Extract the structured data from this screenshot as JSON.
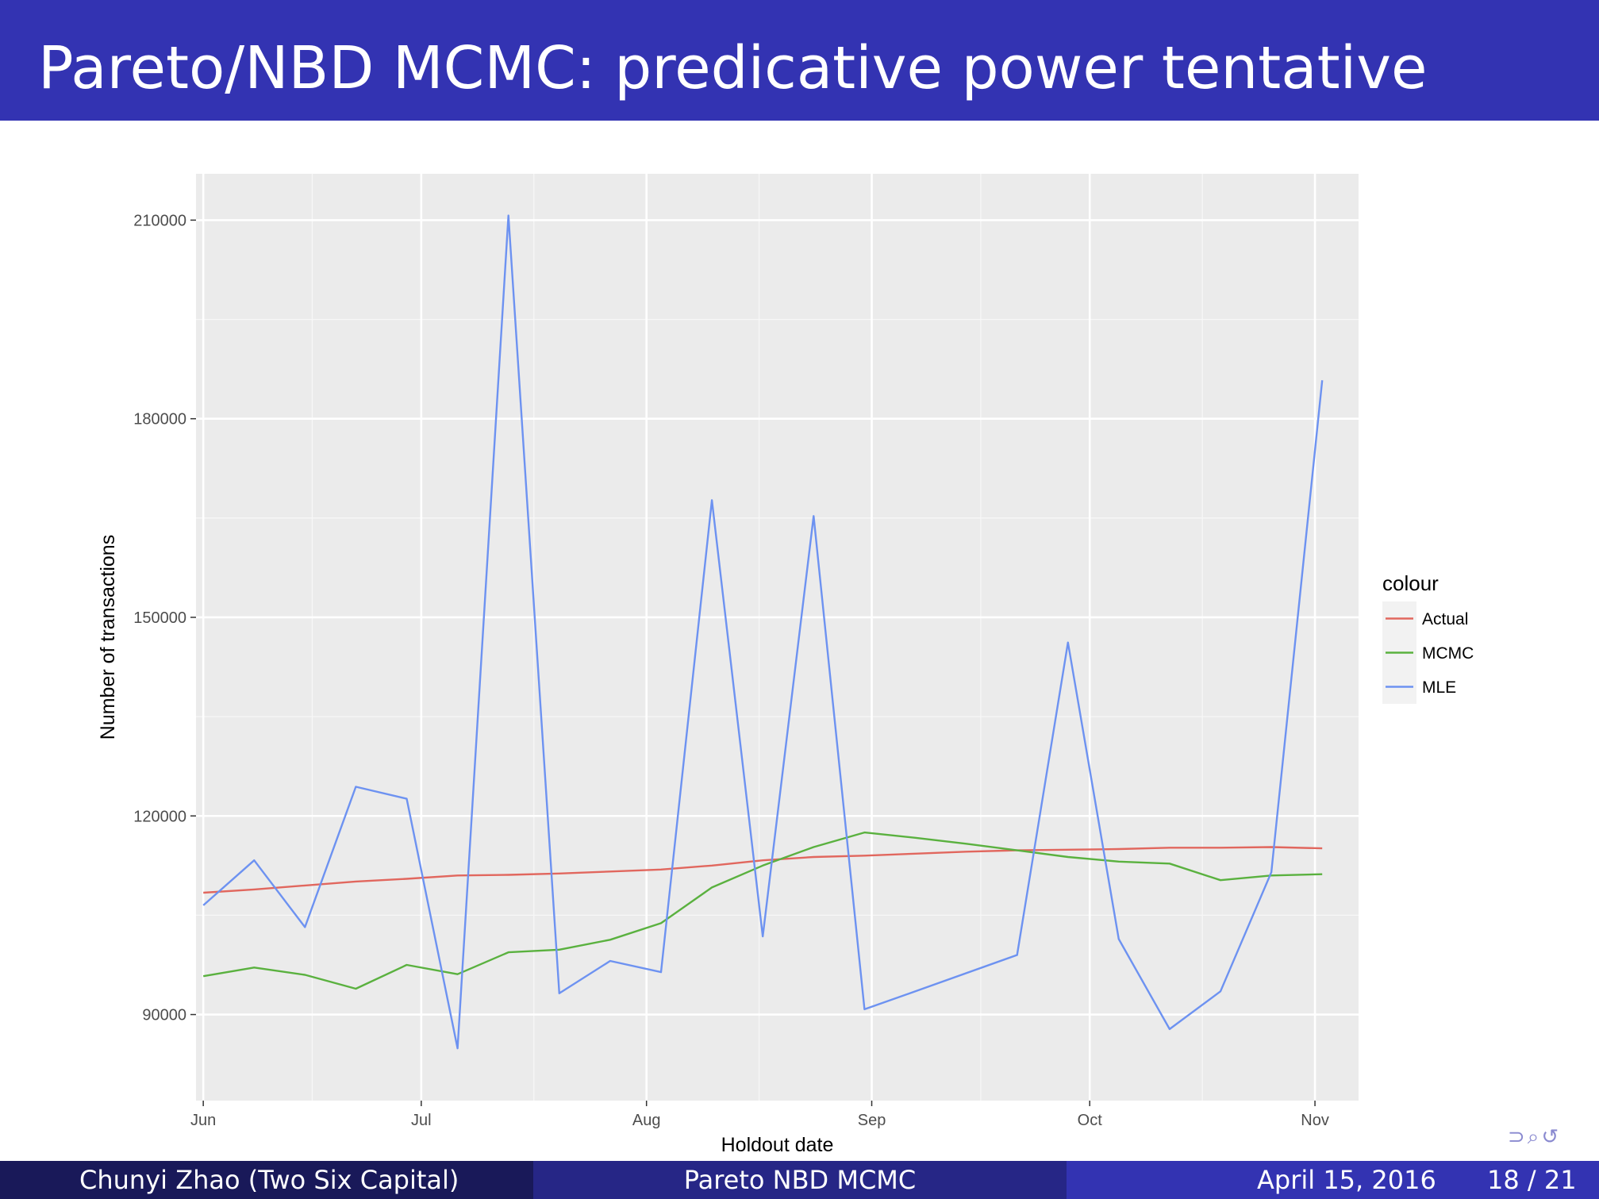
{
  "slide": {
    "title": "Pareto/NBD MCMC: predicative power tentative"
  },
  "footer": {
    "author": "Chunyi Zhao  (Two Six Capital)",
    "short_title": "Pareto NBD MCMC",
    "date": "April 15, 2016",
    "page": "18 / 21"
  },
  "nav_icons": [
    "nav-prev-icon",
    "nav-search-icon",
    "nav-return-icon"
  ],
  "chart_data": {
    "type": "line",
    "xlabel": "Holdout date",
    "ylabel": "Number of transactions",
    "x_axis_type": "date",
    "xlim": [
      "2015-05-31",
      "2015-11-07"
    ],
    "ylim": [
      77000,
      217000
    ],
    "x_ticks": [
      {
        "date": "2015-06-01",
        "label": "Jun"
      },
      {
        "date": "2015-07-01",
        "label": "Jul"
      },
      {
        "date": "2015-08-01",
        "label": "Aug"
      },
      {
        "date": "2015-09-01",
        "label": "Sep"
      },
      {
        "date": "2015-10-01",
        "label": "Oct"
      },
      {
        "date": "2015-11-01",
        "label": "Nov"
      }
    ],
    "y_ticks": [
      90000,
      120000,
      150000,
      180000,
      210000
    ],
    "y_tick_labels": [
      "90000",
      "120000",
      "150000",
      "180000",
      "210000"
    ],
    "grid": true,
    "legend": {
      "title": "colour",
      "position": "right"
    },
    "x": [
      "2015-06-01",
      "2015-06-08",
      "2015-06-15",
      "2015-06-22",
      "2015-06-29",
      "2015-07-06",
      "2015-07-13",
      "2015-07-20",
      "2015-07-27",
      "2015-08-03",
      "2015-08-10",
      "2015-08-17",
      "2015-08-24",
      "2015-08-31",
      "2015-09-07",
      "2015-09-14",
      "2015-09-21",
      "2015-09-28",
      "2015-10-05",
      "2015-10-12",
      "2015-10-19",
      "2015-10-26",
      "2015-11-02"
    ],
    "series": [
      {
        "name": "Actual",
        "color": "#e1675e",
        "values": [
          108400,
          108900,
          109500,
          110100,
          110500,
          111000,
          111100,
          111300,
          111600,
          111900,
          112500,
          113300,
          113800,
          114000,
          114300,
          114600,
          114800,
          114900,
          115000,
          115200,
          115200,
          115300,
          115100
        ]
      },
      {
        "name": "MCMC",
        "color": "#5ab13f",
        "values": [
          95800,
          97100,
          96000,
          93900,
          97500,
          96100,
          99400,
          99800,
          101300,
          103800,
          109200,
          112500,
          115300,
          117500,
          116700,
          115800,
          114800,
          113800,
          113100,
          112800,
          110300,
          111000,
          111200
        ]
      },
      {
        "name": "MLE",
        "color": "#6d92f1",
        "values": [
          106500,
          113300,
          103200,
          124400,
          122600,
          84900,
          210700,
          93200,
          98100,
          96400,
          167700,
          101800,
          165300,
          90800,
          93500,
          null,
          99000,
          146200,
          101400,
          87800,
          93500,
          111500,
          185800
        ]
      }
    ]
  }
}
